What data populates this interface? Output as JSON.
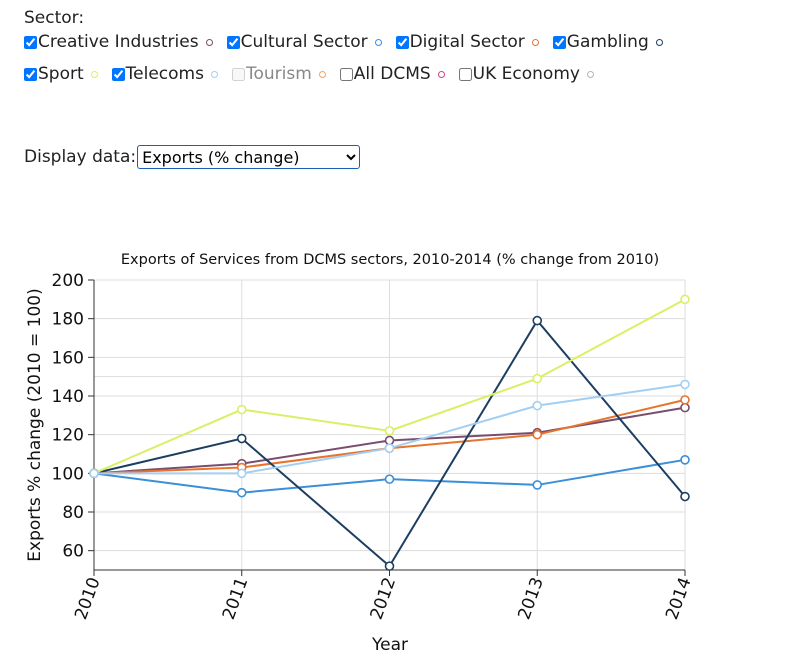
{
  "sector": {
    "label": "Sector:",
    "items": [
      {
        "label": "Creative Industries",
        "checked": true,
        "disabled": false,
        "color": "#7a4d6e"
      },
      {
        "label": "Cultural Sector",
        "checked": true,
        "disabled": false,
        "color": "#3a8fd9"
      },
      {
        "label": "Digital Sector",
        "checked": true,
        "disabled": false,
        "color": "#e8742c"
      },
      {
        "label": "Gambling",
        "checked": true,
        "disabled": false,
        "color": "#1c3e61"
      },
      {
        "label": "Sport",
        "checked": true,
        "disabled": false,
        "color": "#d9f064"
      },
      {
        "label": "Telecoms",
        "checked": true,
        "disabled": false,
        "color": "#a3cff2"
      },
      {
        "label": "Tourism",
        "checked": false,
        "disabled": true,
        "color": "#f3a36a"
      },
      {
        "label": "All DCMS",
        "checked": false,
        "disabled": false,
        "color": "#d0408f"
      },
      {
        "label": "UK Economy",
        "checked": false,
        "disabled": false,
        "color": "#b5b5b5"
      }
    ]
  },
  "display": {
    "label": "Display data:",
    "selected": "Exports (% change)"
  },
  "chart_data": {
    "type": "line",
    "title": "Exports of Services from DCMS sectors, 2010-2014 (% change from 2010)",
    "xlabel": "Year",
    "ylabel": "Exports % change (2010 = 100)",
    "x": [
      "2010",
      "2011",
      "2012",
      "2013",
      "2014"
    ],
    "ylim": [
      50,
      200
    ],
    "yticks": [
      60,
      80,
      100,
      120,
      140,
      160,
      180,
      200
    ],
    "grid": true,
    "series": [
      {
        "name": "Creative Industries",
        "color": "#7a4d6e",
        "values": [
          100,
          105,
          117,
          121,
          134
        ]
      },
      {
        "name": "Cultural Sector",
        "color": "#3a8fd9",
        "values": [
          100,
          90,
          97,
          94,
          107
        ]
      },
      {
        "name": "Digital Sector",
        "color": "#e8742c",
        "values": [
          100,
          103,
          113,
          120,
          138
        ]
      },
      {
        "name": "Gambling",
        "color": "#1c3e61",
        "values": [
          100,
          118,
          52,
          179,
          88
        ]
      },
      {
        "name": "Sport",
        "color": "#d9f064",
        "values": [
          100,
          133,
          122,
          149,
          190
        ]
      },
      {
        "name": "Telecoms",
        "color": "#a3cff2",
        "values": [
          100,
          100,
          113,
          135,
          146
        ]
      }
    ]
  }
}
